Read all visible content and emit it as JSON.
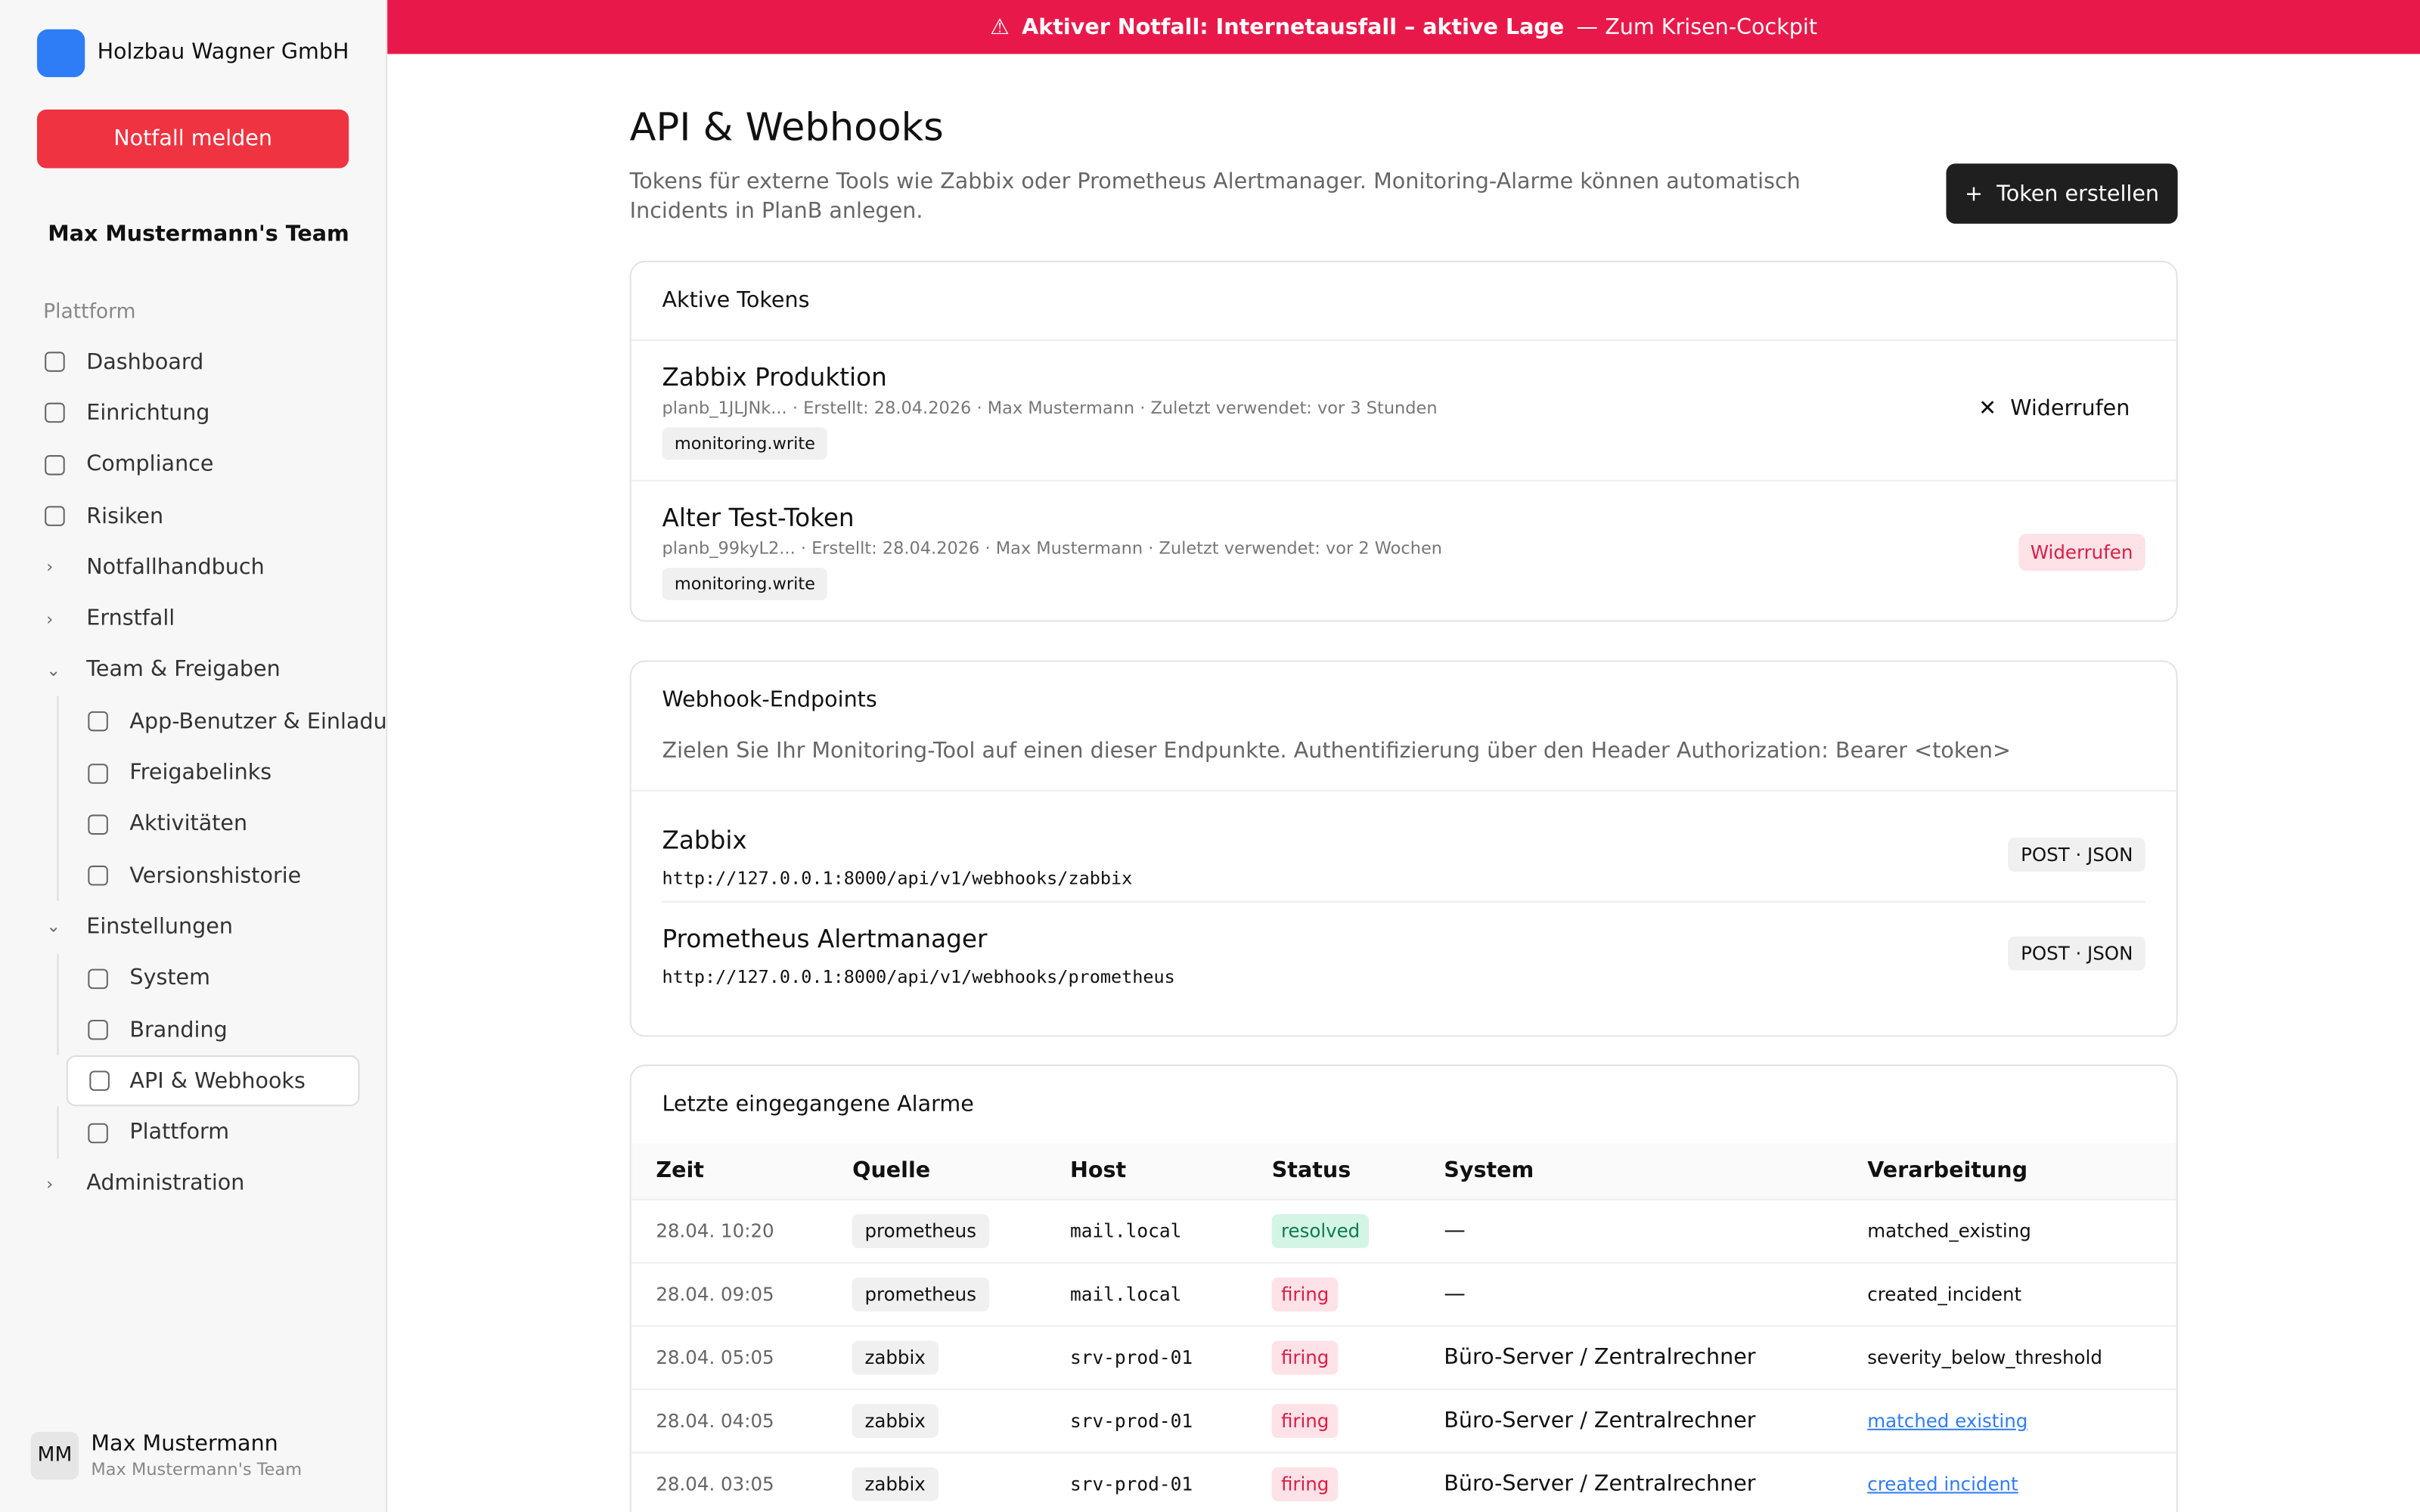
{
  "banner": {
    "text": "Aktiver Notfall: Internetausfall – aktive Lage",
    "link": "— Zum Krisen-Cockpit"
  },
  "sidebar": {
    "org": "Holzbau Wagner GmbH",
    "emergency_button": "Notfall melden",
    "team": "Max Mustermann's Team",
    "section": "Plattform",
    "nav": [
      {
        "label": "Dashboard",
        "level": 0
      },
      {
        "label": "Einrichtung",
        "level": 0
      },
      {
        "label": "Compliance",
        "level": 0
      },
      {
        "label": "Risiken",
        "level": 0
      },
      {
        "label": "Notfallhandbuch",
        "level": 0,
        "chevron": "closed"
      },
      {
        "label": "Ernstfall",
        "level": 0,
        "chevron": "closed"
      },
      {
        "label": "Team & Freigaben",
        "level": 0,
        "chevron": "open"
      },
      {
        "label": "App-Benutzer & Einladungen",
        "level": 1
      },
      {
        "label": "Freigabelinks",
        "level": 1
      },
      {
        "label": "Aktivitäten",
        "level": 1
      },
      {
        "label": "Versionshistorie",
        "level": 1
      },
      {
        "label": "Einstellungen",
        "level": 0,
        "chevron": "open"
      },
      {
        "label": "System",
        "level": 1
      },
      {
        "label": "Branding",
        "level": 1
      },
      {
        "label": "API & Webhooks",
        "level": 1,
        "active": true
      },
      {
        "label": "Plattform",
        "level": 1
      },
      {
        "label": "Administration",
        "level": 0,
        "chevron": "closed"
      }
    ]
  },
  "user": {
    "initials": "MM",
    "name": "Max Mustermann",
    "team": "Max Mustermann's Team"
  },
  "page": {
    "title": "API & Webhooks",
    "description": "Tokens für externe Tools wie Zabbix oder Prometheus Alertmanager. Monitoring-Alarme können automatisch Incidents in PlanB anlegen.",
    "create_button": "Token erstellen"
  },
  "tokens": {
    "title": "Aktive Tokens",
    "items": [
      {
        "name": "Zabbix Produktion",
        "meta": "planb_1JLJNk... · Erstellt: 28.04.2026 · Max Mustermann · Zuletzt verwendet: vor 3 Stunden",
        "scope": "monitoring.write",
        "action": "Widerrufen",
        "style": "plain"
      },
      {
        "name": "Alter Test-Token",
        "meta": "planb_99kyL2... · Erstellt: 28.04.2026 · Max Mustermann · Zuletzt verwendet: vor 2 Wochen",
        "scope": "monitoring.write",
        "action": "Widerrufen",
        "style": "danger"
      }
    ]
  },
  "webhooks": {
    "title": "Webhook-Endpoints",
    "description": "Zielen Sie Ihr Monitoring-Tool auf einen dieser Endpunkte. Authentifizierung über den Header Authorization: Bearer <token>",
    "items": [
      {
        "name": "Zabbix",
        "url": "http://127.0.0.1:8000/api/v1/webhooks/zabbix",
        "method": "POST · JSON"
      },
      {
        "name": "Prometheus Alertmanager",
        "url": "http://127.0.0.1:8000/api/v1/webhooks/prometheus",
        "method": "POST · JSON"
      }
    ]
  },
  "alarms": {
    "title": "Letzte eingegangene Alarme",
    "columns": [
      "Zeit",
      "Quelle",
      "Host",
      "Status",
      "System",
      "Verarbeitung"
    ],
    "rows": [
      {
        "time": "28.04. 10:20",
        "source": "prometheus",
        "host": "mail.local",
        "status": "resolved",
        "system": "—",
        "processing": "matched_existing",
        "link": false
      },
      {
        "time": "28.04. 09:05",
        "source": "prometheus",
        "host": "mail.local",
        "status": "firing",
        "system": "—",
        "processing": "created_incident",
        "link": false
      },
      {
        "time": "28.04. 05:05",
        "source": "zabbix",
        "host": "srv-prod-01",
        "status": "firing",
        "system": "Büro-Server / Zentralrechner",
        "processing": "severity_below_threshold",
        "link": false
      },
      {
        "time": "28.04. 04:05",
        "source": "zabbix",
        "host": "srv-prod-01",
        "status": "firing",
        "system": "Büro-Server / Zentralrechner",
        "processing": "matched existing",
        "link": true
      },
      {
        "time": "28.04. 03:05",
        "source": "zabbix",
        "host": "srv-prod-01",
        "status": "firing",
        "system": "Büro-Server / Zentralrechner",
        "processing": "created incident",
        "link": true
      }
    ]
  }
}
